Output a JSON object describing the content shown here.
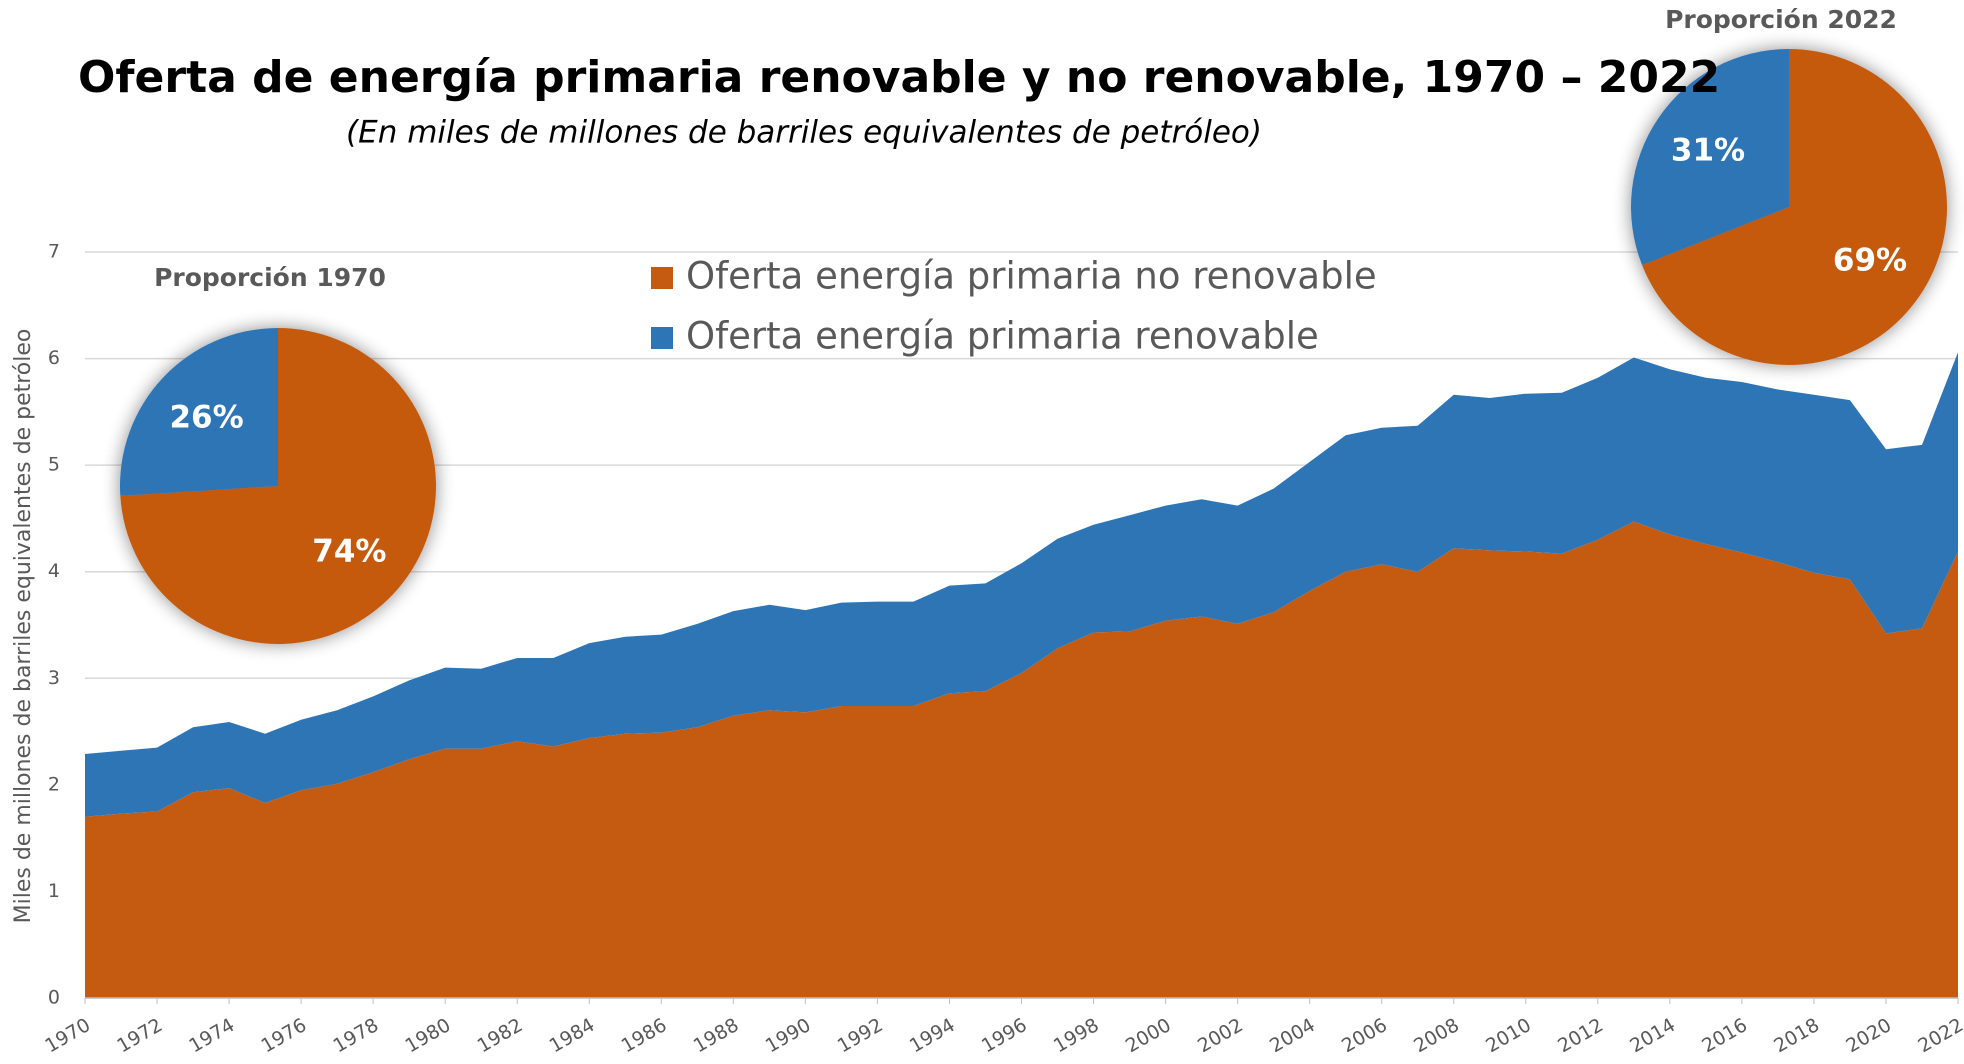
{
  "chart_data": [
    {
      "type": "area",
      "title": "Oferta de energía primaria renovable y no renovable, 1970 – 2022",
      "subtitle": "(En miles de millones de barriles equivalentes de petróleo)",
      "y_label": "Miles de millones de barriles equivalentes de petróleo",
      "x": [
        1970,
        1971,
        1972,
        1973,
        1974,
        1975,
        1976,
        1977,
        1978,
        1979,
        1980,
        1981,
        1982,
        1983,
        1984,
        1985,
        1986,
        1987,
        1988,
        1989,
        1990,
        1991,
        1992,
        1993,
        1994,
        1995,
        1996,
        1997,
        1998,
        1999,
        2000,
        2001,
        2002,
        2003,
        2004,
        2005,
        2006,
        2007,
        2008,
        2009,
        2010,
        2011,
        2012,
        2013,
        2014,
        2015,
        2016,
        2017,
        2018,
        2019,
        2020,
        2021,
        2022
      ],
      "series": [
        {
          "name": "Oferta energía primaria no renovable",
          "color": "#c55a11",
          "values": [
            1.7,
            1.73,
            1.75,
            1.93,
            1.97,
            1.83,
            1.95,
            2.01,
            2.12,
            2.24,
            2.34,
            2.34,
            2.41,
            2.36,
            2.44,
            2.48,
            2.49,
            2.54,
            2.65,
            2.7,
            2.68,
            2.74,
            2.74,
            2.74,
            2.86,
            2.88,
            3.05,
            3.28,
            3.43,
            3.44,
            3.54,
            3.58,
            3.51,
            3.62,
            3.82,
            4.0,
            4.07,
            4.0,
            4.22,
            4.2,
            4.19,
            4.17,
            4.3,
            4.47,
            4.35,
            4.26,
            4.18,
            4.09,
            3.99,
            3.93,
            3.42,
            3.47,
            4.19
          ]
        },
        {
          "name": "Oferta energía primaria renovable",
          "color": "#2e75b6",
          "values": [
            0.59,
            0.59,
            0.6,
            0.61,
            0.62,
            0.65,
            0.66,
            0.69,
            0.71,
            0.74,
            0.76,
            0.75,
            0.78,
            0.83,
            0.89,
            0.91,
            0.92,
            0.97,
            0.98,
            0.99,
            0.96,
            0.97,
            0.98,
            0.98,
            1.01,
            1.01,
            1.03,
            1.03,
            1.01,
            1.09,
            1.08,
            1.1,
            1.11,
            1.16,
            1.21,
            1.28,
            1.28,
            1.37,
            1.44,
            1.43,
            1.48,
            1.51,
            1.52,
            1.54,
            1.55,
            1.56,
            1.6,
            1.62,
            1.67,
            1.68,
            1.73,
            1.72,
            1.87
          ]
        }
      ],
      "stacked": true,
      "xlim": [
        1970,
        2022
      ],
      "xticks": [
        1970,
        1972,
        1974,
        1976,
        1978,
        1980,
        1982,
        1984,
        1986,
        1988,
        1990,
        1992,
        1994,
        1996,
        1998,
        2000,
        2002,
        2004,
        2006,
        2008,
        2010,
        2012,
        2014,
        2016,
        2018,
        2020,
        2022
      ],
      "ylim": [
        0,
        7
      ],
      "yticks": [
        0,
        1,
        2,
        3,
        4,
        5,
        6,
        7
      ],
      "grid": true
    },
    {
      "type": "pie",
      "title": "Proporción 1970",
      "values": [
        74,
        26
      ],
      "value_labels": [
        "74%",
        "26%"
      ],
      "colors": [
        "#c55a11",
        "#2e75b6"
      ]
    },
    {
      "type": "pie",
      "title": "Proporción 2022",
      "values": [
        69,
        31
      ],
      "value_labels": [
        "69%",
        "31%"
      ],
      "colors": [
        "#c55a11",
        "#2e75b6"
      ]
    }
  ]
}
